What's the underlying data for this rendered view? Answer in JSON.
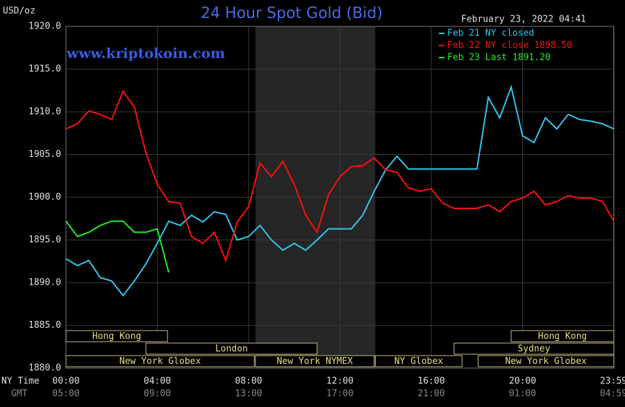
{
  "chart_data": {
    "type": "line",
    "title": "24 Hour Spot Gold (Bid)",
    "y_label": "USD/oz",
    "date": "February 23, 2022 04:41",
    "watermark": "www.kriptokoin.com",
    "x_axis_label": "NY Time",
    "x2_axis_label": "GMT",
    "xlim": [
      0,
      24
    ],
    "xticks": [
      {
        "value": 0,
        "label": "00:00"
      },
      {
        "value": 4,
        "label": "04:00"
      },
      {
        "value": 8,
        "label": "08:00"
      },
      {
        "value": 12,
        "label": "12:00"
      },
      {
        "value": 16,
        "label": "16:00"
      },
      {
        "value": 20,
        "label": "20:00"
      },
      {
        "value": 23.983,
        "label": "23:59"
      }
    ],
    "x2ticks": [
      {
        "value": 0,
        "label": "05:00"
      },
      {
        "value": 4,
        "label": "09:00"
      },
      {
        "value": 8,
        "label": "13:00"
      },
      {
        "value": 12,
        "label": "17:00"
      },
      {
        "value": 16,
        "label": "21:00"
      },
      {
        "value": 20,
        "label": "01:00"
      },
      {
        "value": 23.983,
        "label": "04:59"
      }
    ],
    "ylim": [
      1880,
      1920
    ],
    "yticks": [
      {
        "value": 1880,
        "label": "1880.0"
      },
      {
        "value": 1885,
        "label": "1885.0"
      },
      {
        "value": 1890,
        "label": "1890.0"
      },
      {
        "value": 1895,
        "label": "1895.0"
      },
      {
        "value": 1900,
        "label": "1900.0"
      },
      {
        "value": 1905,
        "label": "1905.0"
      },
      {
        "value": 1910,
        "label": "1910.0"
      },
      {
        "value": 1915,
        "label": "1915.0"
      },
      {
        "value": 1920,
        "label": "1920.0"
      }
    ],
    "grid": true,
    "shaded_x": [
      8.3,
      13.55
    ],
    "x": [
      0,
      0.5,
      1,
      1.5,
      2,
      2.5,
      3,
      3.5,
      4,
      4.5,
      5,
      5.5,
      6,
      6.5,
      7,
      7.5,
      8,
      8.5,
      9,
      9.5,
      10,
      10.5,
      11,
      11.5,
      12,
      12.5,
      13,
      13.5,
      14,
      14.5,
      15,
      15.5,
      16,
      16.5,
      17,
      17.5,
      18,
      18.5,
      19,
      19.5,
      20,
      20.5,
      21,
      21.5,
      22,
      22.5,
      23,
      23.5,
      24
    ],
    "series": [
      {
        "name": "Feb 21 NY closed",
        "color": "#33c8f0",
        "values": [
          1892.8,
          1892.0,
          1892.6,
          1890.6,
          1890.2,
          1888.5,
          1890.2,
          1892.2,
          1894.6,
          1897.2,
          1896.7,
          1897.9,
          1897.1,
          1898.3,
          1898.0,
          1895.0,
          1895.4,
          1896.7,
          1895.0,
          1893.8,
          1894.6,
          1893.8,
          1895.0,
          1896.3,
          1896.3,
          1896.3,
          1897.9,
          1900.7,
          1903.2,
          1904.8,
          1903.3,
          1903.3,
          1903.3,
          1903.3,
          1903.3,
          1903.3,
          1903.3,
          1911.7,
          1909.3,
          1912.9,
          1907.2,
          1906.4,
          1909.3,
          1908.0,
          1909.7,
          1909.1,
          1908.9,
          1908.6,
          1908.0
        ]
      },
      {
        "name": "Feb 22 NY close 1898.50",
        "color": "#ff1010",
        "values": [
          1908.0,
          1908.6,
          1910.1,
          1909.7,
          1909.1,
          1912.4,
          1910.5,
          1905.2,
          1901.5,
          1899.5,
          1899.3,
          1895.4,
          1894.6,
          1895.9,
          1892.6,
          1897.1,
          1898.9,
          1904.0,
          1902.4,
          1904.2,
          1901.5,
          1897.9,
          1895.9,
          1900.3,
          1902.4,
          1903.6,
          1903.7,
          1904.6,
          1903.2,
          1902.9,
          1901.1,
          1900.7,
          1901.0,
          1899.3,
          1898.7,
          1898.7,
          1898.7,
          1899.1,
          1898.3,
          1899.5,
          1899.9,
          1900.7,
          1899.1,
          1899.5,
          1900.2,
          1899.9,
          1899.9,
          1899.5,
          1897.2
        ]
      },
      {
        "name": "Feb 23 Last 1891.20",
        "color": "#20f020",
        "values": [
          1897.2,
          1895.4,
          1895.9,
          1896.7,
          1897.2,
          1897.2,
          1895.9,
          1895.9,
          1896.3,
          1891.2,
          null,
          null,
          null,
          null,
          null,
          null,
          null,
          null,
          null,
          null,
          null,
          null,
          null,
          null,
          null,
          null,
          null,
          null,
          null,
          null,
          null,
          null,
          null,
          null,
          null,
          null,
          null,
          null,
          null,
          null,
          null,
          null,
          null,
          null,
          null,
          null,
          null,
          null,
          null
        ]
      }
    ],
    "sessions": [
      [
        {
          "label": "Hong Kong",
          "start": 0,
          "end": 4.45
        },
        {
          "label": "Hong Kong",
          "start": 19.5,
          "end": 24
        }
      ],
      [
        {
          "label": "London",
          "start": 3.5,
          "end": 11
        },
        {
          "label": "Sydney",
          "start": 17,
          "end": 24
        }
      ],
      [
        {
          "label": "New York Globex",
          "start": 0,
          "end": 8.25
        },
        {
          "label": "New York NYMEX",
          "start": 8.3,
          "end": 13.5
        },
        {
          "label": "NY Globex",
          "start": 13.55,
          "end": 17.35
        },
        {
          "label": "New York Globex",
          "start": 18.05,
          "end": 24
        }
      ]
    ]
  }
}
